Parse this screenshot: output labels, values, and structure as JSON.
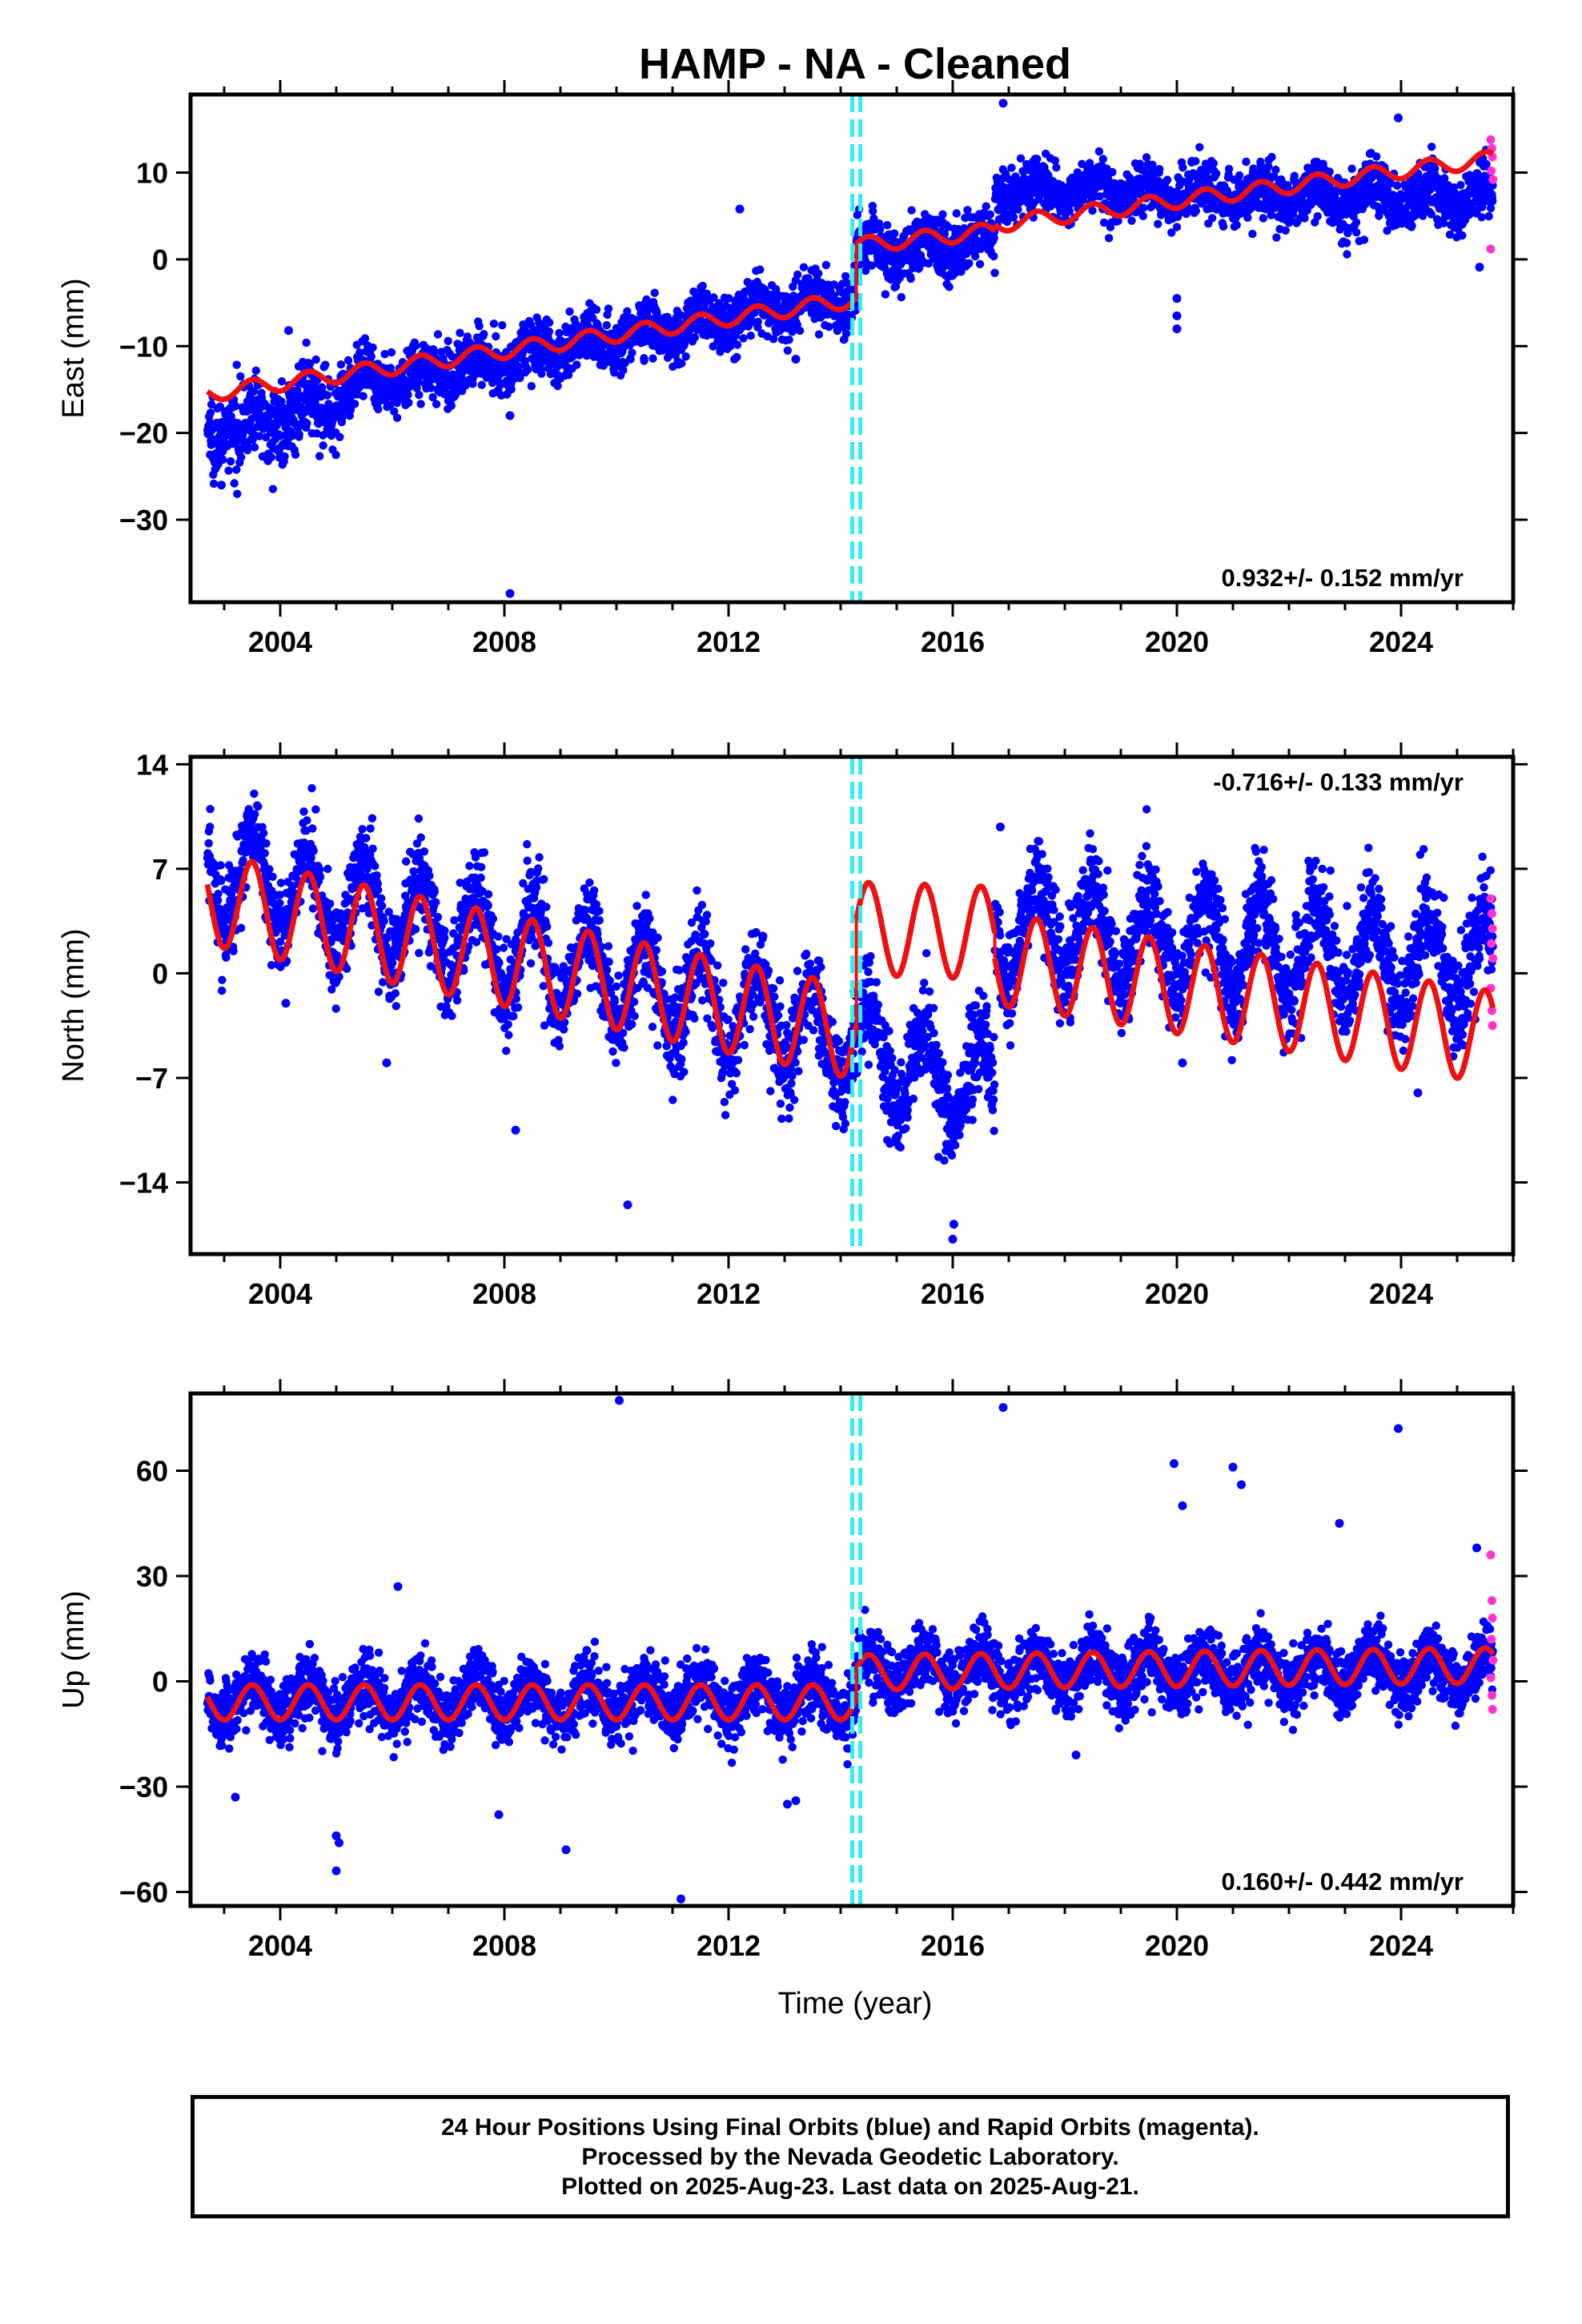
{
  "title": "HAMP  - NA - Cleaned",
  "xlabel": "Time (year)",
  "colors": {
    "final_orbits": "#0000ff",
    "rapid_orbits": "#ff33cc",
    "model": "#ee1111",
    "offset_marker": "#33eeee"
  },
  "footer": {
    "line1": "24 Hour Positions Using Final Orbits (blue) and Rapid Orbits (magenta).",
    "line2": "Processed by the Nevada Geodetic Laboratory.",
    "line3": "Plotted on 2025-Aug-23. Last data on 2025-Aug-21."
  },
  "chart_data": [
    {
      "type": "scatter",
      "component": "east",
      "ylabel": "East (mm)",
      "xlim": [
        2002.4,
        2026.0
      ],
      "ylim": [
        -39.5,
        19.0
      ],
      "x_ticks": [
        2004,
        2008,
        2012,
        2016,
        2020,
        2024
      ],
      "y_ticks": [
        10,
        0,
        -10,
        -20,
        -30
      ],
      "rate_label": "0.932+/- 0.152 mm/yr",
      "rate_position": "bottom-right",
      "offset_epoch": 2014.28,
      "data_range": [
        2002.7,
        2025.64
      ],
      "model": {
        "segments": [
          {
            "t_start": 2002.7,
            "t_end": 2014.28,
            "value_at_start": -15.5,
            "value_at_end": -4.6
          },
          {
            "t_start": 2014.28,
            "t_end": 2016.75,
            "value_at_start": 1.6,
            "value_at_end": 3.3
          },
          {
            "t_start": 2016.75,
            "t_end": 2025.64,
            "value_at_start": 4.0,
            "value_at_end": 11.6
          }
        ],
        "seasonal_amplitude": 0.9
      },
      "observations": {
        "segments": [
          {
            "t_start": 2002.7,
            "t_end": 2005.0,
            "value_at_start": -20.0,
            "value_at_end": -16.5,
            "scatter": 2.2
          },
          {
            "t_start": 2005.0,
            "t_end": 2014.28,
            "value_at_start": -15.0,
            "value_at_end": -4.0,
            "scatter": 1.6
          },
          {
            "t_start": 2014.28,
            "t_end": 2016.75,
            "value_at_start": 1.0,
            "value_at_end": 2.0,
            "scatter": 1.6
          },
          {
            "t_start": 2016.75,
            "t_end": 2025.64,
            "value_at_start": 8.0,
            "value_at_end": 7.0,
            "scatter": 1.6
          }
        ],
        "seasonal_amplitude": 1.2
      },
      "outliers": [
        [
          2008.1,
          -38.5
        ],
        [
          2020.0,
          -4.5
        ],
        [
          2020.0,
          -6.5
        ],
        [
          2020.0,
          -8.0
        ],
        [
          2016.9,
          18.0
        ],
        [
          2023.95,
          16.3
        ],
        [
          2012.2,
          5.8
        ],
        [
          2008.1,
          -18.0
        ],
        [
          2013.2,
          -11.5
        ],
        [
          2004.15,
          -8.2
        ],
        [
          2002.95,
          -26.0
        ],
        [
          2025.4,
          -0.9
        ]
      ],
      "rapid_points": [
        [
          2025.6,
          13.8
        ],
        [
          2025.62,
          12.8
        ],
        [
          2025.63,
          11.8
        ],
        [
          2025.61,
          10.2
        ],
        [
          2025.64,
          9.2
        ],
        [
          2025.6,
          1.2
        ]
      ]
    },
    {
      "type": "scatter",
      "component": "north",
      "ylabel": "North (mm)",
      "xlim": [
        2002.4,
        2026.0
      ],
      "ylim": [
        -18.8,
        14.5
      ],
      "x_ticks": [
        2004,
        2008,
        2012,
        2016,
        2020,
        2024
      ],
      "y_ticks": [
        14,
        7,
        0,
        -7,
        -14
      ],
      "rate_label": "-0.716+/- 0.133 mm/yr",
      "rate_position": "top-right",
      "offset_epoch": 2014.28,
      "data_range": [
        2002.7,
        2025.64
      ],
      "model": {
        "segments": [
          {
            "t_start": 2002.7,
            "t_end": 2014.28,
            "value_at_start": 5.0,
            "value_at_end": -4.0
          },
          {
            "t_start": 2014.28,
            "t_end": 2016.75,
            "value_at_start": 3.0,
            "value_at_end": 2.7
          },
          {
            "t_start": 2016.75,
            "t_end": 2025.64,
            "value_at_start": 1.0,
            "value_at_end": -4.3
          }
        ],
        "seasonal_amplitude": 3.1
      },
      "observations": {
        "segments": [
          {
            "t_start": 2002.7,
            "t_end": 2014.28,
            "value_at_start": 7.0,
            "value_at_end": -4.5,
            "scatter": 1.6
          },
          {
            "t_start": 2014.28,
            "t_end": 2016.75,
            "value_at_start": -5.0,
            "value_at_end": -8.0,
            "scatter": 1.6
          },
          {
            "t_start": 2016.75,
            "t_end": 2025.64,
            "value_at_start": 3.0,
            "value_at_end": 0.5,
            "scatter": 1.6
          }
        ],
        "seasonal_amplitude": 3.2
      },
      "outliers": [
        [
          2008.2,
          -10.5
        ],
        [
          2010.2,
          -15.5
        ],
        [
          2016.0,
          -17.8
        ],
        [
          2016.02,
          -16.8
        ],
        [
          2005.9,
          -6.0
        ],
        [
          2016.85,
          9.8
        ],
        [
          2004.1,
          -2.0
        ],
        [
          2020.1,
          -6.0
        ],
        [
          2024.3,
          -8.0
        ]
      ],
      "rapid_points": [
        [
          2025.6,
          5.0
        ],
        [
          2025.62,
          4.0
        ],
        [
          2025.63,
          3.0
        ],
        [
          2025.61,
          2.0
        ],
        [
          2025.64,
          1.0
        ],
        [
          2025.6,
          -1.0
        ],
        [
          2025.62,
          -2.5
        ],
        [
          2025.63,
          -3.5
        ]
      ]
    },
    {
      "type": "scatter",
      "component": "up",
      "ylabel": "Up (mm)",
      "xlim": [
        2002.4,
        2026.0
      ],
      "ylim": [
        -64.0,
        82.0
      ],
      "x_ticks": [
        2004,
        2008,
        2012,
        2016,
        2020,
        2024
      ],
      "y_ticks": [
        60,
        30,
        0,
        -30,
        -60
      ],
      "rate_label": "0.160+/- 0.442 mm/yr",
      "rate_position": "bottom-right",
      "offset_epoch": 2014.28,
      "data_range": [
        2002.7,
        2025.64
      ],
      "model": {
        "segments": [
          {
            "t_start": 2002.7,
            "t_end": 2014.28,
            "value_at_start": -6.0,
            "value_at_end": -6.0
          },
          {
            "t_start": 2014.28,
            "t_end": 2025.64,
            "value_at_start": 2.5,
            "value_at_end": 4.5
          }
        ],
        "seasonal_amplitude": 5.0
      },
      "observations": {
        "segments": [
          {
            "t_start": 2002.7,
            "t_end": 2014.28,
            "value_at_start": -5.0,
            "value_at_end": -5.0,
            "scatter": 4.5
          },
          {
            "t_start": 2014.28,
            "t_end": 2025.64,
            "value_at_start": 3.0,
            "value_at_end": 3.0,
            "scatter": 4.5
          }
        ],
        "seasonal_amplitude": 5.0
      },
      "outliers": [
        [
          2010.05,
          80.0
        ],
        [
          2016.9,
          78.0
        ],
        [
          2023.95,
          72.0
        ],
        [
          2019.95,
          62.0
        ],
        [
          2020.1,
          50.0
        ],
        [
          2021.0,
          61.0
        ],
        [
          2021.15,
          56.0
        ],
        [
          2022.9,
          45.0
        ],
        [
          2025.35,
          38.0
        ],
        [
          2005.0,
          -44.0
        ],
        [
          2005.05,
          -46.0
        ],
        [
          2005.0,
          -54.0
        ],
        [
          2009.1,
          -48.0
        ],
        [
          2011.15,
          -62.0
        ],
        [
          2013.05,
          -35.0
        ],
        [
          2013.2,
          -34.0
        ],
        [
          2003.2,
          -33.0
        ],
        [
          2006.1,
          27.0
        ],
        [
          2007.9,
          -38.0
        ],
        [
          2018.2,
          -21.0
        ]
      ],
      "rapid_points": [
        [
          2025.6,
          36.0
        ],
        [
          2025.62,
          23.0
        ],
        [
          2025.63,
          18.0
        ],
        [
          2025.61,
          12.0
        ],
        [
          2025.64,
          6.0
        ],
        [
          2025.6,
          1.0
        ],
        [
          2025.62,
          -4.0
        ],
        [
          2025.63,
          -8.0
        ]
      ]
    }
  ]
}
